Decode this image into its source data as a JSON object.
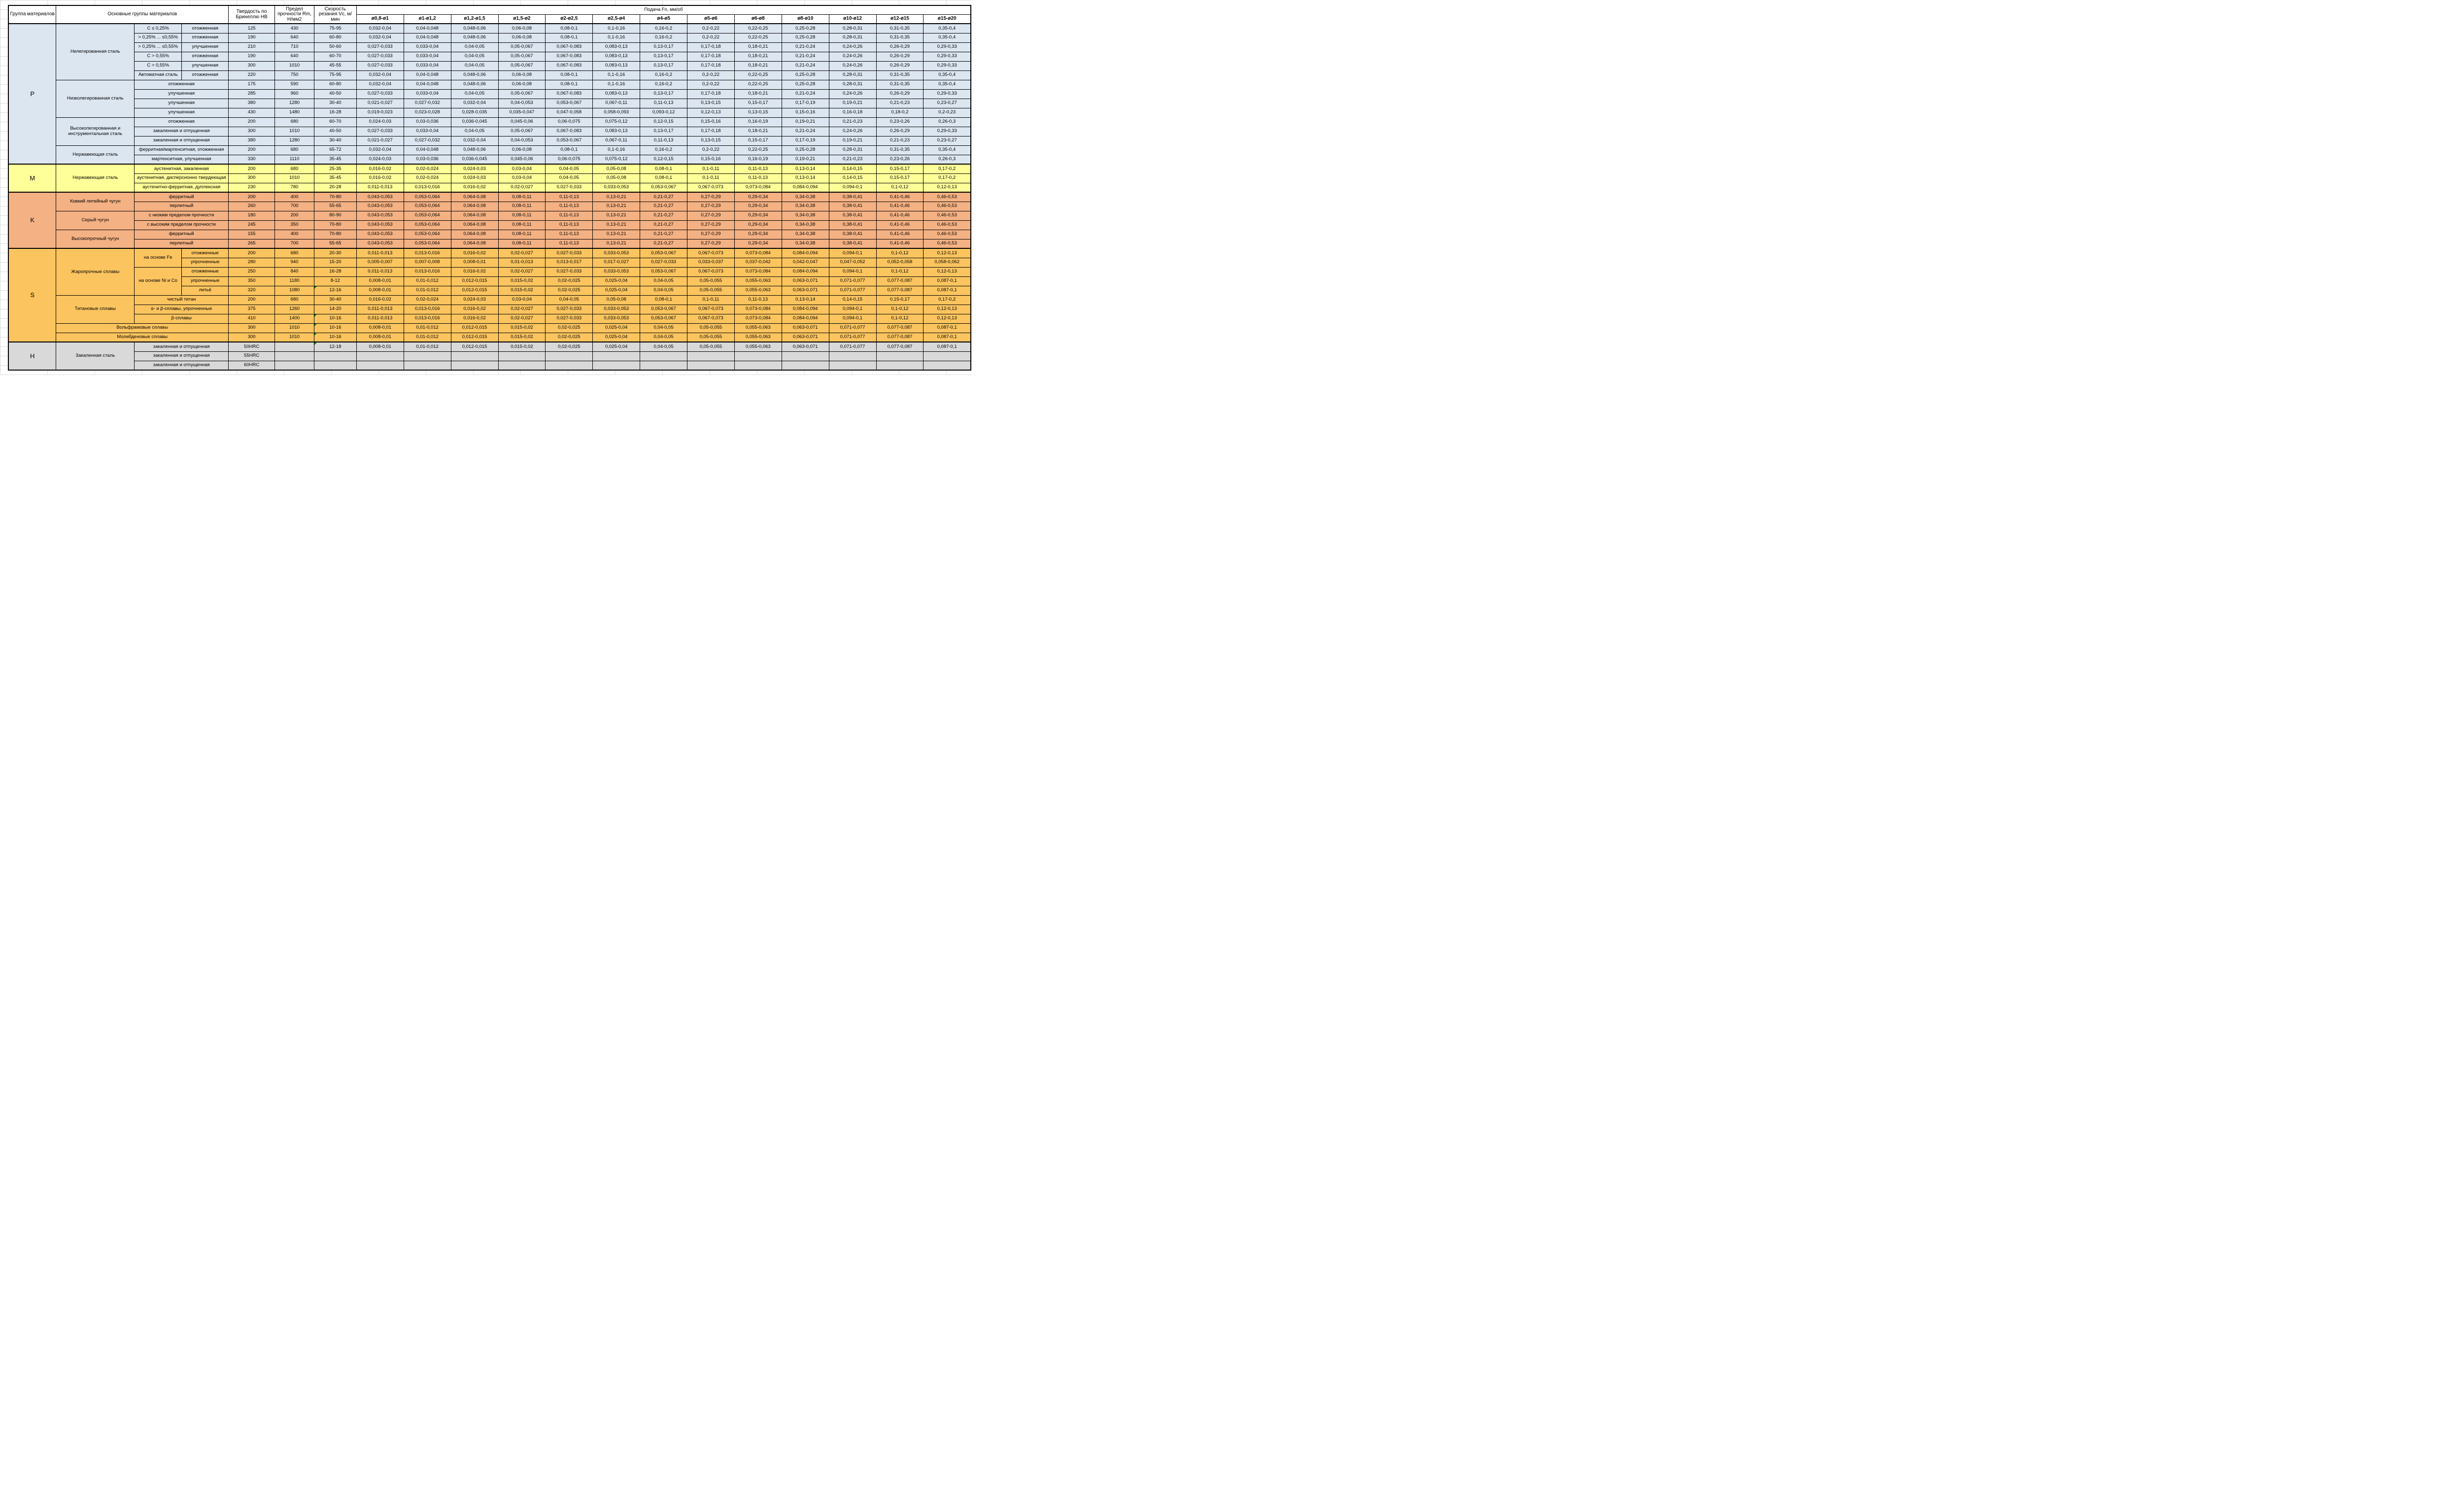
{
  "header": {
    "group": "Группа материалов",
    "main_groups": "Основные группы материалов",
    "hardness": "Твердость по Бринеллю HB",
    "strength": "Предел прочности Rm, Н/мм2",
    "speed": "Скорость резания Vc, м/мин",
    "feed": "Подача Fn, мм/об",
    "feed_sizes": [
      "ø0,8-ø1",
      "ø1-ø1,2",
      "ø1,2-ø1,5",
      "ø1,5-ø2",
      "ø2-ø2,5",
      "ø2,5-ø4",
      "ø4-ø5",
      "ø5-ø6",
      "ø6-ø8",
      "ø8-ø10",
      "ø10-ø12",
      "ø12-ø15",
      "ø15-ø20"
    ]
  },
  "colors": {
    "P": "#DCE6F1",
    "M": "#FFFF99",
    "K": "#F4B183",
    "S": "#FBC45F",
    "H": "#D9D9D9",
    "flag": "#0B7A0B"
  },
  "body": {
    "rows": [
      {
        "g": "P",
        "sec": true,
        "pre": [
          {
            "t": "P",
            "r": 15,
            "big": 1
          },
          {
            "t": "Нелегированная сталь",
            "r": 6,
            "w": 1
          },
          {
            "t": "С ≤ 0,25%"
          },
          {
            "t": "отожженная"
          }
        ],
        "hb": "125",
        "rm": "430",
        "vc": "75-95",
        "feeds": "0,032-0,04|0,04-0,048|0,048-0,06|0,06-0,08|0,08-0,1|0,1-0,16|0,16-0,2|0,2-0,22|0,22-0,25|0,25-0,28|0,28-0,31|0,31-0,35|0,35-0,4"
      },
      {
        "g": "P",
        "pre": [
          {
            "t": "> 0,25% ... ≤0,55%"
          },
          {
            "t": "отожженная"
          }
        ],
        "hb": "190",
        "rm": "640",
        "vc": "60-80",
        "feeds": "0,032-0,04|0,04-0,048|0,048-0,06|0,06-0,08|0,08-0,1|0,1-0,16|0,16-0,2|0,2-0,22|0,22-0,25|0,25-0,28|0,28-0,31|0,31-0,35|0,35-0,4"
      },
      {
        "g": "P",
        "pre": [
          {
            "t": "> 0,25% ... ≤0,55%"
          },
          {
            "t": "улучшенная"
          }
        ],
        "hb": "210",
        "rm": "710",
        "vc": "50-60",
        "feeds": "0,027-0,033|0,033-0,04|0,04-0,05|0,05-0,067|0,067-0,083|0,083-0,13|0,13-0,17|0,17-0,18|0,18-0,21|0,21-0,24|0,24-0,26|0,26-0,29|0,29-0,33"
      },
      {
        "g": "P",
        "pre": [
          {
            "t": "С > 0,55%"
          },
          {
            "t": "отожженная"
          }
        ],
        "hb": "190",
        "rm": "640",
        "vc": "60-70",
        "feeds": "0,027-0,033|0,033-0,04|0,04-0,05|0,05-0,067|0,067-0,083|0,083-0,13|0,13-0,17|0,17-0,18|0,18-0,21|0,21-0,24|0,24-0,26|0,26-0,29|0,29-0,33"
      },
      {
        "g": "P",
        "pre": [
          {
            "t": "С > 0,55%"
          },
          {
            "t": "улучшенная"
          }
        ],
        "hb": "300",
        "rm": "1010",
        "vc": "45-55",
        "feeds": "0,027-0,033|0,033-0,04|0,04-0,05|0,05-0,067|0,067-0,083|0,083-0,13|0,13-0,17|0,17-0,18|0,18-0,21|0,21-0,24|0,24-0,26|0,26-0,29|0,29-0,33"
      },
      {
        "g": "P",
        "pre": [
          {
            "t": "Автоматная сталь"
          },
          {
            "t": "отожженная"
          }
        ],
        "hb": "220",
        "rm": "750",
        "vc": "75-95",
        "feeds": "0,032-0,04|0,04-0,048|0,048-0,06|0,06-0,08|0,08-0,1|0,1-0,16|0,16-0,2|0,2-0,22|0,22-0,25|0,25-0,28|0,28-0,31|0,31-0,35|0,35-0,4"
      },
      {
        "g": "P",
        "pre": [
          {
            "t": "Низколегированная сталь",
            "r": 4,
            "w": 1
          },
          {
            "t": "отожженная",
            "c": 2
          }
        ],
        "hb": "175",
        "rm": "590",
        "vc": "60-80",
        "feeds": "0,032-0,04|0,04-0,048|0,048-0,06|0,06-0,08|0,08-0,1|0,1-0,16|0,16-0,2|0,2-0,22|0,22-0,25|0,25-0,28|0,28-0,31|0,31-0,35|0,35-0,4"
      },
      {
        "g": "P",
        "pre": [
          {
            "t": "улучшенная",
            "c": 2
          }
        ],
        "hb": "285",
        "rm": "960",
        "vc": "40-50",
        "feeds": "0,027-0,033|0,033-0,04|0,04-0,05|0,05-0,067|0,067-0,083|0,083-0,13|0,13-0,17|0,17-0,18|0,18-0,21|0,21-0,24|0,24-0,26|0,26-0,29|0,29-0,33"
      },
      {
        "g": "P",
        "pre": [
          {
            "t": "улучшенная",
            "c": 2
          }
        ],
        "hb": "380",
        "rm": "1280",
        "vc": "30-40",
        "feeds": "0,021-0,027|0,027-0,032|0,032-0,04|0,04-0,053|0,053-0,067|0,067-0,11|0,11-0,13|0,13-0,15|0,15-0,17|0,17-0,19|0,19-0,21|0,21-0,23|0,23-0,27"
      },
      {
        "g": "P",
        "pre": [
          {
            "t": "улучшенная",
            "c": 2
          }
        ],
        "hb": "430",
        "rm": "1480",
        "vc": "16-28",
        "feeds": "0,019-0,023|0,023-0,028|0,028-0,035|0,035-0,047|0,047-0,058|0,058-0,093|0,093-0,12|0,12-0,13|0,13-0,15|0,15-0,16|0,16-0,18|0,18-0,2|0,2-0,23"
      },
      {
        "g": "P",
        "pre": [
          {
            "t": "Высоколегированная и инструментальная сталь",
            "r": 3,
            "w": 1
          },
          {
            "t": "отожженная",
            "c": 2
          }
        ],
        "hb": "200",
        "rm": "680",
        "vc": "60-70",
        "feeds": "0,024-0,03|0,03-0,036|0,036-0,045|0,045-0,06|0,06-0,075|0,075-0,12|0,12-0,15|0,15-0,16|0,16-0,19|0,19-0,21|0,21-0,23|0,23-0,26|0,26-0,3"
      },
      {
        "g": "P",
        "pre": [
          {
            "t": "закаленная и отпущенная",
            "c": 2
          }
        ],
        "hb": "300",
        "rm": "1010",
        "vc": "40-50",
        "feeds": "0,027-0,033|0,033-0,04|0,04-0,05|0,05-0,067|0,067-0,083|0,083-0,13|0,13-0,17|0,17-0,18|0,18-0,21|0,21-0,24|0,24-0,26|0,26-0,29|0,29-0,33"
      },
      {
        "g": "P",
        "pre": [
          {
            "t": "закаленная и отпущенная",
            "c": 2
          }
        ],
        "hb": "380",
        "rm": "1280",
        "vc": "30-40",
        "feeds": "0,021-0,027|0,027-0,032|0,032-0,04|0,04-0,053|0,053-0,067|0,067-0,11|0,11-0,13|0,13-0,15|0,15-0,17|0,17-0,19|0,19-0,21|0,21-0,23|0,23-0,27"
      },
      {
        "g": "P",
        "pre": [
          {
            "t": "Нержавеющая сталь",
            "r": 2,
            "w": 1
          },
          {
            "t": "ферритная/мартенситная, отожженная",
            "c": 2
          }
        ],
        "hb": "200",
        "rm": "680",
        "vc": "65-72",
        "feeds": "0,032-0,04|0,04-0,048|0,048-0,06|0,06-0,08|0,08-0,1|0,1-0,16|0,16-0,2|0,2-0,22|0,22-0,25|0,25-0,28|0,28-0,31|0,31-0,35|0,35-0,4"
      },
      {
        "g": "P",
        "pre": [
          {
            "t": "мартенситная, улучшенная",
            "c": 2
          }
        ],
        "hb": "330",
        "rm": "1110",
        "vc": "35-45",
        "feeds": "0,024-0,03|0,03-0,036|0,036-0,045|0,045-0,06|0,06-0,075|0,075-0,12|0,12-0,15|0,15-0,16|0,16-0,19|0,19-0,21|0,21-0,23|0,23-0,26|0,26-0,3"
      },
      {
        "g": "M",
        "sec": true,
        "pre": [
          {
            "t": "M",
            "r": 3,
            "big": 1
          },
          {
            "t": "Нержавеющая сталь",
            "r": 3,
            "w": 1
          },
          {
            "t": "аустенитная, закаленная",
            "c": 2
          }
        ],
        "hb": "200",
        "rm": "680",
        "vc": "25-35",
        "feeds": "0,016-0,02|0,02-0,024|0,024-0,03|0,03-0,04|0,04-0,05|0,05-0,08|0,08-0,1|0,1-0,11|0,11-0,13|0,13-0,14|0,14-0,15|0,15-0,17|0,17-0,2"
      },
      {
        "g": "M",
        "pre": [
          {
            "t": "аустенитная, дисперсионно твердеющая",
            "c": 2
          }
        ],
        "hb": "300",
        "rm": "1010",
        "vc": "35-45",
        "feeds": "0,016-0,02|0,02-0,024|0,024-0,03|0,03-0,04|0,04-0,05|0,05-0,08|0,08-0,1|0,1-0,11|0,11-0,13|0,13-0,14|0,14-0,15|0,15-0,17|0,17-0,2"
      },
      {
        "g": "M",
        "pre": [
          {
            "t": "аустенитно-ферритная, дуплексная",
            "c": 2
          }
        ],
        "hb": "230",
        "rm": "780",
        "vc": "20-28",
        "feeds": "0,011-0,013|0,013-0,016|0,016-0,02|0,02-0,027|0,027-0,033|0,033-0,053|0,053-0,067|0,067-0,073|0,073-0,084|0,084-0,094|0,094-0,1|0,1-0,12|0,12-0,13"
      },
      {
        "g": "K",
        "sec": true,
        "pre": [
          {
            "t": "K",
            "r": 6,
            "big": 1
          },
          {
            "t": "Ковкий литейный чугун",
            "r": 2,
            "w": 1
          },
          {
            "t": "ферритный",
            "c": 2
          }
        ],
        "hb": "200",
        "rm": "400",
        "vc": "70-80",
        "feeds": "0,043-0,053|0,053-0,064|0,064-0,08|0,08-0,11|0,11-0,13|0,13-0,21|0,21-0,27|0,27-0,29|0,29-0,34|0,34-0,38|0,38-0,41|0,41-0,46|0,46-0,53"
      },
      {
        "g": "K",
        "pre": [
          {
            "t": "перлитный",
            "c": 2
          }
        ],
        "hb": "260",
        "rm": "700",
        "vc": "55-65",
        "feeds": "0,043-0,053|0,053-0,064|0,064-0,08|0,08-0,11|0,11-0,13|0,13-0,21|0,21-0,27|0,27-0,29|0,29-0,34|0,34-0,38|0,38-0,41|0,41-0,46|0,46-0,53"
      },
      {
        "g": "K",
        "pre": [
          {
            "t": "Серый чугун",
            "r": 2,
            "w": 1
          },
          {
            "t": "с низким пределом прочности",
            "c": 2
          }
        ],
        "hb": "180",
        "rm": "200",
        "vc": "80-90",
        "feeds": "0,043-0,053|0,053-0,064|0,064-0,08|0,08-0,11|0,11-0,13|0,13-0,21|0,21-0,27|0,27-0,29|0,29-0,34|0,34-0,38|0,38-0,41|0,41-0,46|0,46-0,53"
      },
      {
        "g": "K",
        "pre": [
          {
            "t": "с высоким пределом прочности",
            "c": 2
          }
        ],
        "hb": "245",
        "rm": "350",
        "vc": "70-80",
        "feeds": "0,043-0,053|0,053-0,064|0,064-0,08|0,08-0,11|0,11-0,13|0,13-0,21|0,21-0,27|0,27-0,29|0,29-0,34|0,34-0,38|0,38-0,41|0,41-0,46|0,46-0,53"
      },
      {
        "g": "K",
        "pre": [
          {
            "t": "Высокопрочный чугун",
            "r": 2,
            "w": 1
          },
          {
            "t": "ферритный",
            "c": 2
          }
        ],
        "hb": "155",
        "rm": "400",
        "vc": "70-80",
        "feeds": "0,043-0,053|0,053-0,064|0,064-0,08|0,08-0,11|0,11-0,13|0,13-0,21|0,21-0,27|0,27-0,29|0,29-0,34|0,34-0,38|0,38-0,41|0,41-0,46|0,46-0,53"
      },
      {
        "g": "K",
        "pre": [
          {
            "t": "перлитный",
            "c": 2
          }
        ],
        "hb": "265",
        "rm": "700",
        "vc": "55-65",
        "feeds": "0,043-0,053|0,053-0,064|0,064-0,08|0,08-0,11|0,11-0,13|0,13-0,21|0,21-0,27|0,27-0,29|0,29-0,34|0,34-0,38|0,38-0,41|0,41-0,46|0,46-0,53"
      },
      {
        "g": "S",
        "sec": true,
        "pre": [
          {
            "t": "S",
            "r": 10,
            "big": 1
          },
          {
            "t": "Жаропрочные сплавы",
            "r": 5,
            "w": 1
          },
          {
            "t": "на основе Fe",
            "r": 2
          },
          {
            "t": "отожженные"
          }
        ],
        "hb": "200",
        "rm": "680",
        "vc": "20-30",
        "feeds": "0,011-0,013|0,013-0,016|0,016-0,02|0,02-0,027|0,027-0,033|0,033-0,053|0,053-0,067|0,067-0,073|0,073-0,084|0,084-0,094|0,094-0,1|0,1-0,12|0,12-0,13"
      },
      {
        "g": "S",
        "pre": [
          {
            "t": "упрочненные"
          }
        ],
        "hb": "280",
        "rm": "940",
        "vc": "15-20",
        "feeds": "0,005-0,007|0,007-0,008|0,008-0,01|0,01-0,013|0,013-0,017|0,017-0,027|0,027-0,033|0,033-0,037|0,037-0,042|0,042-0,047|0,047-0,052|0,052-0,058|0,058-0,062"
      },
      {
        "g": "S",
        "pre": [
          {
            "t": "на основе Ni и Co",
            "r": 3
          },
          {
            "t": "отожженные"
          }
        ],
        "hb": "250",
        "rm": "840",
        "vc": "16-28",
        "feeds": "0,011-0,013|0,013-0,016|0,016-0,02|0,02-0,027|0,027-0,033|0,033-0,053|0,053-0,067|0,067-0,073|0,073-0,084|0,084-0,094|0,094-0,1|0,1-0,12|0,12-0,13"
      },
      {
        "g": "S",
        "pre": [
          {
            "t": "упрочненные"
          }
        ],
        "hb": "350",
        "rm": "1180",
        "vc": "8-12",
        "feeds": "0,008-0,01|0,01-0,012|0,012-0,015|0,015-0,02|0,02-0,025|0,025-0,04|0,04-0,05|0,05-0,055|0,055-0,063|0,063-0,071|0,071-0,077|0,077-0,087|0,087-0,1"
      },
      {
        "g": "S",
        "pre": [
          {
            "t": "литьё"
          }
        ],
        "hb": "320",
        "rm": "1080",
        "vc": "12-16",
        "vcf": true,
        "feeds": "0,008-0,01|0,01-0,012|0,012-0,015|0,015-0,02|0,02-0,025|0,025-0,04|0,04-0,05|0,05-0,055|0,055-0,063|0,063-0,071|0,071-0,077|0,077-0,087|0,087-0,1"
      },
      {
        "g": "S",
        "pre": [
          {
            "t": "Титановые сплавы",
            "r": 3,
            "w": 1
          },
          {
            "t": "чистый титан",
            "c": 2
          }
        ],
        "hb": "200",
        "rm": "680",
        "vc": "30-40",
        "feeds": "0,016-0,02|0,02-0,024|0,024-0,03|0,03-0,04|0,04-0,05|0,05-0,08|0,08-0,1|0,1-0,11|0,11-0,13|0,13-0,14|0,14-0,15|0,15-0,17|0,17-0,2"
      },
      {
        "g": "S",
        "pre": [
          {
            "t": "α- и β-сплавы, упрочненные",
            "c": 2
          }
        ],
        "hb": "375",
        "rm": "1260",
        "vc": "14-20",
        "feeds": "0,011-0,013|0,013-0,016|0,016-0,02|0,02-0,027|0,027-0,033|0,033-0,053|0,053-0,067|0,067-0,073|0,073-0,084|0,084-0,094|0,094-0,1|0,1-0,12|0,12-0,13"
      },
      {
        "g": "S",
        "pre": [
          {
            "t": "β-сплавы",
            "c": 2
          }
        ],
        "hb": "410",
        "rm": "1400",
        "vc": "10-16",
        "vcf": true,
        "feeds": "0,011-0,013|0,013-0,016|0,016-0,02|0,02-0,027|0,027-0,033|0,033-0,053|0,053-0,067|0,067-0,073|0,073-0,084|0,084-0,094|0,094-0,1|0,1-0,12|0,12-0,13"
      },
      {
        "g": "S",
        "pre": [
          {
            "t": "Вольфрамовые сплавы",
            "c": 3,
            "w": 1
          }
        ],
        "hb": "300",
        "rm": "1010",
        "vc": "10-16",
        "vcf": true,
        "feeds": "0,008-0,01|0,01-0,012|0,012-0,015|0,015-0,02|0,02-0,025|0,025-0,04|0,04-0,05|0,05-0,055|0,055-0,063|0,063-0,071|0,071-0,077|0,077-0,087|0,087-0,1"
      },
      {
        "g": "S",
        "pre": [
          {
            "t": "Молибденовые сплавы",
            "c": 3,
            "w": 1
          }
        ],
        "hb": "300",
        "rm": "1010",
        "vc": "10-16",
        "vcf": true,
        "feeds": "0,008-0,01|0,01-0,012|0,012-0,015|0,015-0,02|0,02-0,025|0,025-0,04|0,04-0,05|0,05-0,055|0,055-0,063|0,063-0,071|0,071-0,077|0,077-0,087|0,087-0,1"
      },
      {
        "g": "H",
        "sec": true,
        "pre": [
          {
            "t": "H",
            "r": 3,
            "big": 1
          },
          {
            "t": "Закаленная сталь",
            "r": 3,
            "w": 1
          },
          {
            "t": "закаленная и отпущенная",
            "c": 2
          }
        ],
        "hb": "50HRC",
        "rm": "",
        "vc": "12-18",
        "vcf": true,
        "feeds": "0,008-0,01|0,01-0,012|0,012-0,015|0,015-0,02|0,02-0,025|0,025-0,04|0,04-0,05|0,05-0,055|0,055-0,063|0,063-0,071|0,071-0,077|0,077-0,087|0,087-0,1"
      },
      {
        "g": "H",
        "pre": [
          {
            "t": "закаленная и отпущенная",
            "c": 2
          }
        ],
        "hb": "55HRC",
        "rm": "",
        "vc": "",
        "feeds": "||||||||||||"
      },
      {
        "g": "H",
        "pre": [
          {
            "t": "закаленная и отпущенная",
            "c": 2
          }
        ],
        "hb": "60HRC",
        "rm": "",
        "vc": "",
        "feeds": "||||||||||||"
      }
    ]
  }
}
